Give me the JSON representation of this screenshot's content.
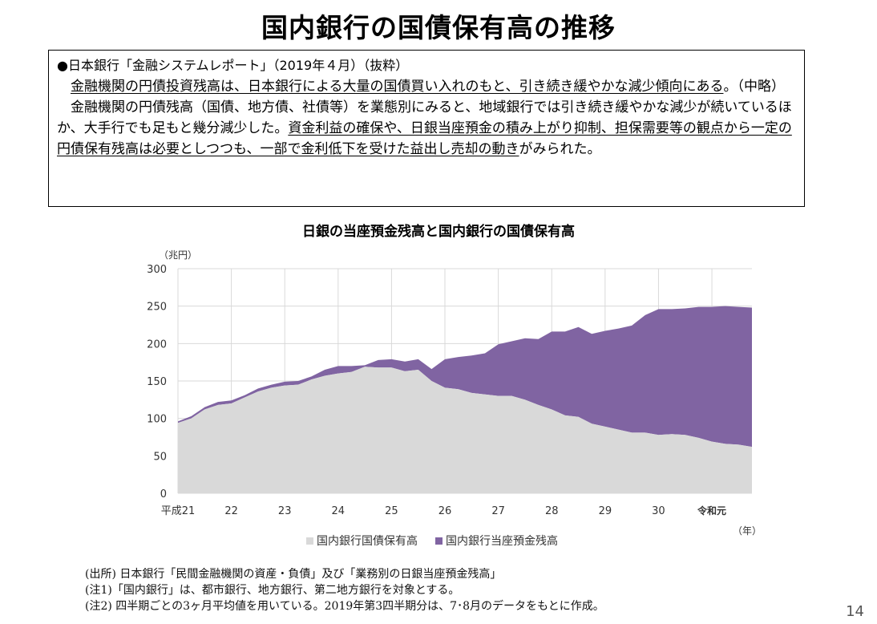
{
  "slide": {
    "title": "国内銀行の国債保有高の推移",
    "page_number": "14"
  },
  "quote": {
    "heading": "●日本銀行「金融システムレポート」（2019年４月）（抜粋）",
    "p1_underlined": "金融機関の円債投資残高は、日本銀行による大量の国債買い入れのもと、引き続き緩やかな減少傾向にある",
    "p1_rest": "。（中略）",
    "p2_plain": "金融機関の円債残高（国債、地方債、社債等）を業態別にみると、地域銀行では引き続き緩やかな減少が続いているほか、大手行でも足もと幾分減少した。",
    "p2_underlined": "資金利益の確保や、日銀当座預金の積み上がり抑制、担保需要等の観点から一定の円債保有残高は必要としつつも、一部で金利低下を受けた益出し売却の動き",
    "p2_tail": "がみられた。"
  },
  "chart_data": {
    "type": "area",
    "title": "日銀の当座預金残高と国内銀行の国債保有高",
    "ylabel": "（兆円）",
    "xlabel": "（年）",
    "ylim": [
      0,
      300
    ],
    "yticks": [
      0,
      50,
      100,
      150,
      200,
      250,
      300
    ],
    "stacked": true,
    "x_start": 2009.0,
    "x_step": 0.25,
    "x_end_label": 2019.75,
    "x_tick_labels": [
      {
        "year": 2009,
        "label": "平成21"
      },
      {
        "year": 2010,
        "label": "22"
      },
      {
        "year": 2011,
        "label": "23"
      },
      {
        "year": 2012,
        "label": "24"
      },
      {
        "year": 2013,
        "label": "25"
      },
      {
        "year": 2014,
        "label": "26"
      },
      {
        "year": 2015,
        "label": "27"
      },
      {
        "year": 2016,
        "label": "28"
      },
      {
        "year": 2017,
        "label": "29"
      },
      {
        "year": 2018,
        "label": "30"
      },
      {
        "year": 2019,
        "label": "令和元"
      }
    ],
    "series": [
      {
        "name": "国内銀行国債保有高",
        "color": "#d9d9d9",
        "values": [
          94,
          100,
          112,
          118,
          120,
          128,
          136,
          141,
          144,
          145,
          152,
          157,
          160,
          162,
          169,
          168,
          168,
          163,
          165,
          150,
          141,
          139,
          134,
          132,
          130,
          130,
          125,
          118,
          112,
          104,
          102,
          93,
          89,
          85,
          81,
          81,
          78,
          79,
          78,
          74,
          69,
          66,
          65,
          62
        ]
      },
      {
        "name": "国内銀行当座預金残高",
        "color": "#8064a2",
        "values": [
          2,
          3,
          3,
          4,
          4,
          3,
          4,
          4,
          5,
          5,
          4,
          8,
          10,
          8,
          2,
          10,
          11,
          13,
          14,
          16,
          38,
          43,
          50,
          55,
          69,
          73,
          82,
          88,
          104,
          112,
          120,
          120,
          128,
          135,
          143,
          157,
          168,
          167,
          169,
          175,
          180,
          184,
          184,
          186
        ]
      }
    ]
  },
  "notes": [
    "(出所) 日本銀行「民間金融機関の資産・負債」及び「業務別の日銀当座預金残高」",
    "(注1)「国内銀行」は、都市銀行、地方銀行、第二地方銀行を対象とする。",
    "(注2) 四半期ごとの3ヶ月平均値を用いている。2019年第3四半期分は、7･8月のデータをもとに作成。"
  ]
}
